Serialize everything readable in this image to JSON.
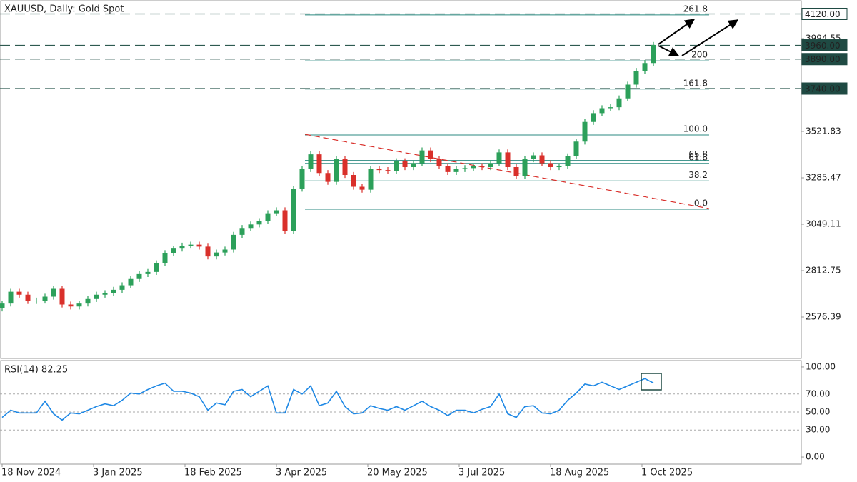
{
  "chart_data": [
    {
      "type": "candlestick",
      "title": "XAUUSD, Daily:  Gold Spot",
      "up_color": "#2ca05a",
      "down_color": "#d9302b",
      "xlim": [
        -0.75,
        279.75
      ],
      "ylim": [
        2365.5,
        4190.9
      ],
      "yticks": [
        2576.39,
        2812.75,
        3049.11,
        3285.47,
        3521.83,
        3994.55
      ],
      "xticks": [
        {
          "value": 0,
          "label": "18 Nov 2024"
        },
        {
          "value": 32,
          "label": "3 Jan 2025"
        },
        {
          "value": 64,
          "label": "18 Feb 2025"
        },
        {
          "value": 96,
          "label": "3 Apr 2025"
        },
        {
          "value": 128,
          "label": "20 May 2025"
        },
        {
          "value": 160,
          "label": "3 Jul 2025"
        },
        {
          "value": 192,
          "label": "18 Aug 2025"
        },
        {
          "value": 224,
          "label": "1 Oct 2025"
        }
      ],
      "x": [
        0,
        3,
        6,
        9,
        12,
        15,
        18,
        21,
        24,
        27,
        30,
        33,
        36,
        39,
        42,
        45,
        48,
        51,
        54,
        57,
        60,
        63,
        66,
        69,
        72,
        75,
        78,
        81,
        84,
        87,
        90,
        93,
        96,
        99,
        102,
        105,
        108,
        111,
        114,
        117,
        120,
        123,
        126,
        129,
        132,
        135,
        138,
        141,
        144,
        147,
        150,
        153,
        156,
        159,
        162,
        165,
        168,
        171,
        174,
        177,
        180,
        183,
        186,
        189,
        192,
        195,
        198,
        201,
        204,
        207,
        210,
        213,
        216,
        219,
        222,
        225,
        228
      ],
      "open": [
        2620,
        2645,
        2705,
        2690,
        2658,
        2660,
        2680,
        2720,
        2640,
        2630,
        2645,
        2668,
        2690,
        2698,
        2715,
        2738,
        2770,
        2795,
        2806,
        2850,
        2902,
        2925,
        2940,
        2945,
        2935,
        2885,
        2905,
        2920,
        2995,
        3030,
        3048,
        3065,
        3105,
        3120,
        3015,
        3230,
        3330,
        3405,
        3310,
        3265,
        3380,
        3300,
        3240,
        3225,
        3330,
        3325,
        3320,
        3370,
        3340,
        3360,
        3425,
        3380,
        3345,
        3315,
        3330,
        3335,
        3345,
        3340,
        3360,
        3415,
        3340,
        3295,
        3380,
        3400,
        3360,
        3340,
        3345,
        3395,
        3470,
        3570,
        3615,
        3640,
        3645,
        3690,
        3760,
        3830,
        3870
      ],
      "high": [
        2660,
        2720,
        2720,
        2705,
        2675,
        2695,
        2735,
        2735,
        2655,
        2660,
        2683,
        2705,
        2713,
        2730,
        2753,
        2785,
        2810,
        2821,
        2865,
        2917,
        2940,
        2955,
        2960,
        2960,
        2950,
        2920,
        2935,
        3010,
        3045,
        3063,
        3080,
        3120,
        3135,
        3135,
        3245,
        3345,
        3420,
        3420,
        3325,
        3395,
        3395,
        3315,
        3255,
        3345,
        3345,
        3340,
        3385,
        3385,
        3375,
        3440,
        3440,
        3395,
        3360,
        3345,
        3350,
        3360,
        3360,
        3375,
        3430,
        3430,
        3355,
        3395,
        3415,
        3415,
        3375,
        3360,
        3410,
        3485,
        3585,
        3630,
        3655,
        3660,
        3705,
        3775,
        3845,
        3885,
        3977
      ],
      "low": [
        2605,
        2630,
        2675,
        2643,
        2643,
        2645,
        2665,
        2625,
        2615,
        2615,
        2630,
        2653,
        2675,
        2683,
        2700,
        2723,
        2755,
        2780,
        2791,
        2835,
        2887,
        2910,
        2925,
        2920,
        2870,
        2870,
        2890,
        2905,
        2980,
        3015,
        3033,
        3050,
        3090,
        3000,
        3000,
        3215,
        3315,
        3295,
        3250,
        3250,
        3285,
        3225,
        3210,
        3210,
        3310,
        3305,
        3305,
        3325,
        3325,
        3345,
        3365,
        3330,
        3300,
        3300,
        3315,
        3320,
        3325,
        3325,
        3345,
        3325,
        3280,
        3280,
        3365,
        3345,
        3325,
        3325,
        3330,
        3380,
        3455,
        3555,
        3600,
        3625,
        3630,
        3675,
        3745,
        3815,
        3855
      ],
      "close": [
        2645,
        2705,
        2690,
        2658,
        2660,
        2680,
        2720,
        2640,
        2630,
        2645,
        2668,
        2690,
        2698,
        2715,
        2738,
        2770,
        2795,
        2806,
        2850,
        2902,
        2925,
        2940,
        2945,
        2935,
        2885,
        2905,
        2920,
        2995,
        3030,
        3048,
        3065,
        3105,
        3120,
        3015,
        3230,
        3330,
        3405,
        3310,
        3265,
        3380,
        3300,
        3240,
        3225,
        3330,
        3325,
        3320,
        3370,
        3340,
        3360,
        3425,
        3380,
        3345,
        3315,
        3330,
        3335,
        3345,
        3340,
        3360,
        3415,
        3340,
        3295,
        3380,
        3400,
        3360,
        3340,
        3345,
        3395,
        3470,
        3570,
        3615,
        3640,
        3645,
        3690,
        3760,
        3830,
        3870,
        3962
      ],
      "levels": [
        {
          "value": 4120,
          "label": "4120.00",
          "fill": "#ffffff",
          "text_color": "#1f4a43"
        },
        {
          "value": 3960,
          "label": "3960.00",
          "fill": "#1f4a43",
          "text_color": "#ffffff"
        },
        {
          "value": 3890,
          "label": "3890.00",
          "fill": "#1f4a43",
          "text_color": "#ffffff"
        },
        {
          "value": 3740,
          "label": "3740.00",
          "fill": "#1f4a43",
          "text_color": "#ffffff"
        }
      ],
      "fib_x": [
        106,
        247.5
      ],
      "fib_color": "#2b8a80",
      "fib": [
        {
          "value": 3125.5,
          "label": "0.0"
        },
        {
          "value": 3269.9,
          "label": "38.2"
        },
        {
          "value": 3359.1,
          "label": "61.8"
        },
        {
          "value": 3374.2,
          "label": "65.8"
        },
        {
          "value": 3503.5,
          "label": "100.0"
        },
        {
          "value": 3737.1,
          "label": "161.8"
        },
        {
          "value": 3881.5,
          "label": "200"
        },
        {
          "value": 4114.9,
          "label": "261.8"
        }
      ],
      "trendline": {
        "x": [
          106,
          247.5
        ],
        "y": [
          3507,
          3129
        ],
        "color": "#d9302b"
      }
    },
    {
      "type": "line",
      "title": "RSI(14) 82.25",
      "color": "#1e88e5",
      "ylim": [
        -7.9,
        107.1
      ],
      "yticks": [
        {
          "value": 0,
          "label": "0.00"
        },
        {
          "value": 30,
          "label": "30.00"
        },
        {
          "value": 50,
          "label": "50.00"
        },
        {
          "value": 70,
          "label": "70.00"
        },
        {
          "value": 100,
          "label": "100.00"
        }
      ],
      "x": [
        0,
        3,
        6,
        9,
        12,
        15,
        18,
        21,
        24,
        27,
        30,
        33,
        36,
        39,
        42,
        45,
        48,
        51,
        54,
        57,
        60,
        63,
        66,
        69,
        72,
        75,
        78,
        81,
        84,
        87,
        90,
        93,
        96,
        99,
        102,
        105,
        108,
        111,
        114,
        117,
        120,
        123,
        126,
        129,
        132,
        135,
        138,
        141,
        144,
        147,
        150,
        153,
        156,
        159,
        162,
        165,
        168,
        171,
        174,
        177,
        180,
        183,
        186,
        189,
        192,
        195,
        198,
        201,
        204,
        207,
        210,
        213,
        216,
        219,
        222,
        225,
        228
      ],
      "values": [
        44,
        52,
        49,
        49,
        49,
        62,
        48,
        41,
        49,
        48,
        52,
        56,
        59,
        57,
        63,
        71,
        70,
        75,
        79,
        82,
        73,
        73,
        71,
        67,
        52,
        60,
        58,
        73,
        75,
        67,
        73,
        79,
        49,
        49,
        75,
        70,
        79,
        57,
        60,
        73,
        56,
        48,
        49,
        57,
        54,
        52,
        56,
        52,
        57,
        62,
        56,
        52,
        46,
        52,
        52,
        49,
        53,
        56,
        70,
        48,
        44,
        56,
        57,
        49,
        48,
        52,
        63,
        71,
        81,
        79,
        83,
        79,
        75,
        79,
        83,
        87,
        82.25
      ]
    }
  ]
}
